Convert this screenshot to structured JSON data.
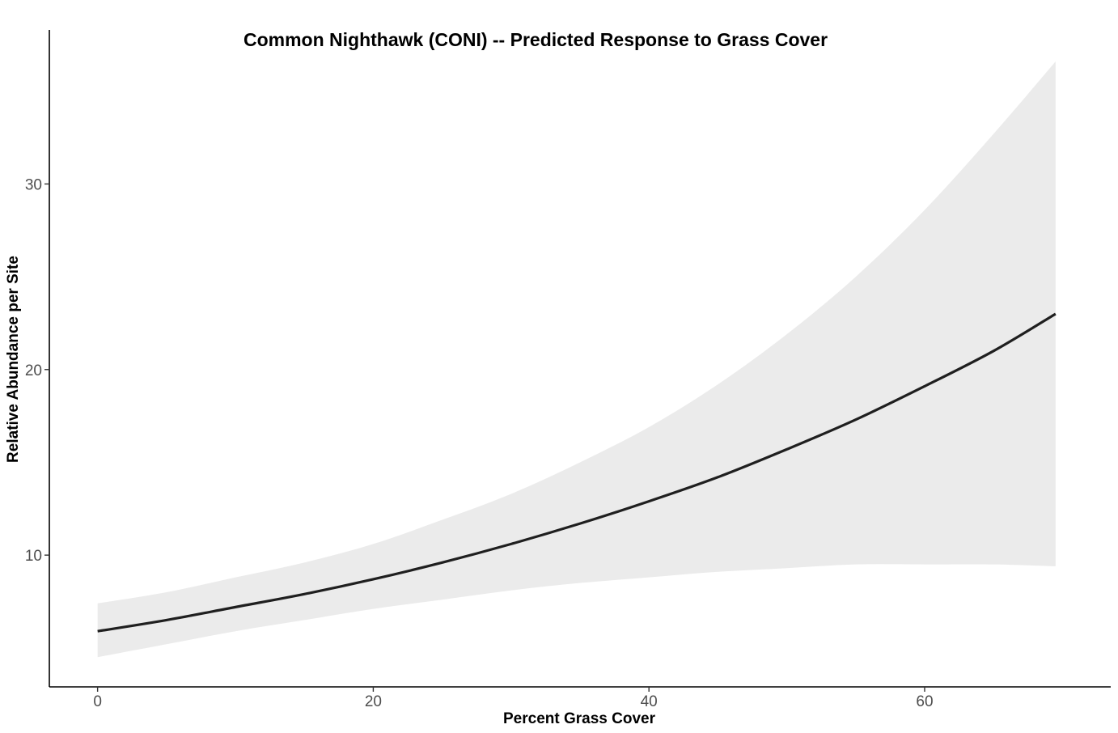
{
  "chart_data": {
    "type": "line",
    "title": "Common Nighthawk (CONI) -- Predicted Response to Grass Cover",
    "xlabel": "Percent Grass Cover",
    "ylabel": "Relative Abundance per Site",
    "xlim": [
      -3.5,
      73.5
    ],
    "ylim": [
      2.9,
      38.3
    ],
    "x_ticks": [
      0,
      20,
      40,
      60
    ],
    "y_ticks": [
      10,
      20,
      30
    ],
    "grid": false,
    "legend": "none",
    "colors": {
      "line": "#1f1f1f",
      "ribbon": "#ebebeb",
      "axis": "#000000",
      "tick_text": "#4d4d4d"
    },
    "series": [
      {
        "x": [
          0,
          5,
          10,
          15,
          20,
          25,
          30,
          35,
          40,
          45,
          50,
          55,
          60,
          65,
          69.5
        ],
        "y": [
          5.9,
          6.5,
          7.2,
          7.9,
          8.7,
          9.6,
          10.6,
          11.7,
          12.9,
          14.2,
          15.7,
          17.3,
          19.1,
          21.0,
          23.0
        ],
        "lower": [
          4.5,
          5.2,
          5.9,
          6.5,
          7.1,
          7.6,
          8.1,
          8.5,
          8.8,
          9.1,
          9.3,
          9.5,
          9.5,
          9.5,
          9.4
        ],
        "upper": [
          7.4,
          8.0,
          8.8,
          9.6,
          10.6,
          11.9,
          13.3,
          15.0,
          16.9,
          19.2,
          21.9,
          25.0,
          28.6,
          32.7,
          36.6
        ]
      }
    ]
  }
}
